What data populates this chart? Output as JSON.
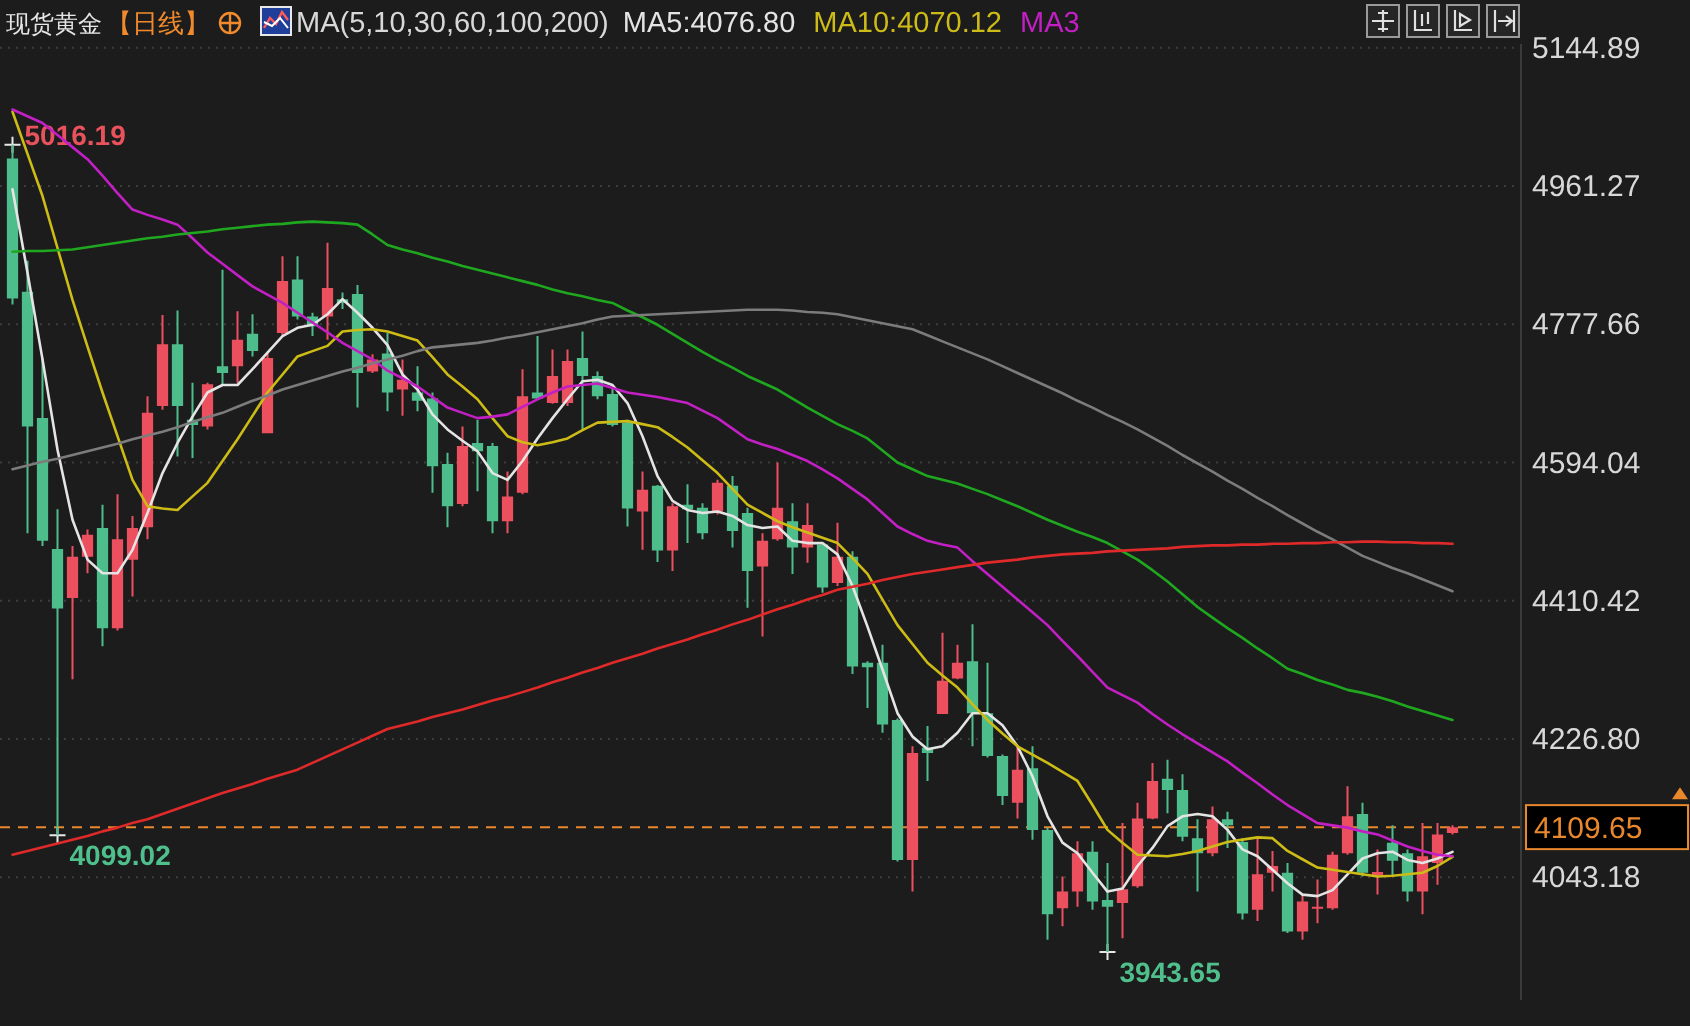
{
  "chart_data": {
    "type": "candlestick",
    "title": "现货黄金",
    "subtitle": "【日线】",
    "legend_title": "MA(5,10,30,60,100,200)",
    "legend": "top",
    "categories": [
      null,
      null,
      null,
      null,
      null,
      null,
      null,
      null,
      null,
      null,
      null,
      null,
      null,
      null,
      null,
      null,
      null,
      null,
      null,
      null,
      null,
      null,
      null,
      null,
      null,
      null,
      null,
      null,
      null,
      null,
      null,
      null,
      null,
      null,
      null,
      null,
      null,
      null,
      null,
      null,
      null,
      null,
      null,
      null,
      null,
      null,
      null,
      null,
      null,
      null,
      null,
      null,
      null,
      null,
      null,
      null,
      null,
      null,
      null,
      null,
      null,
      null,
      null,
      null,
      null,
      null,
      null,
      null,
      null,
      null,
      null,
      null,
      null,
      null,
      null,
      null,
      null,
      null,
      null,
      null,
      null,
      null,
      null,
      null,
      null,
      null,
      null,
      null,
      null,
      null,
      null,
      null,
      null,
      null,
      null,
      null,
      null
    ],
    "ohlc": [
      [
        4998,
        5016.19,
        4804,
        4812
      ],
      [
        4821,
        4862,
        4500,
        4642
      ],
      [
        4653,
        4733,
        4483,
        4490
      ],
      [
        4479,
        4532,
        4099.02,
        4400
      ],
      [
        4414,
        4483,
        4306,
        4469
      ],
      [
        4469,
        4505,
        4447,
        4498
      ],
      [
        4507,
        4538,
        4350,
        4374
      ],
      [
        4374,
        4552,
        4371,
        4492
      ],
      [
        4465,
        4523,
        4416,
        4507
      ],
      [
        4508,
        4682,
        4492,
        4660
      ],
      [
        4669,
        4790,
        4664,
        4751
      ],
      [
        4751,
        4796,
        4602,
        4669
      ],
      [
        4651,
        4700,
        4600,
        4644
      ],
      [
        4642,
        4700,
        4638,
        4698
      ],
      [
        4722,
        4850,
        4697,
        4713
      ],
      [
        4722,
        4795,
        4700,
        4757
      ],
      [
        4765,
        4791,
        4735,
        4742
      ],
      [
        4633,
        4740,
        4633,
        4733
      ],
      [
        4766,
        4868,
        4762,
        4835
      ],
      [
        4837,
        4868,
        4784,
        4788
      ],
      [
        4788,
        4793,
        4762,
        4775
      ],
      [
        4788,
        4886,
        4757,
        4826
      ],
      [
        4811,
        4820,
        4798,
        4806
      ],
      [
        4818,
        4830,
        4667,
        4713
      ],
      [
        4715,
        4738,
        4713,
        4731
      ],
      [
        4739,
        4766,
        4662,
        4687
      ],
      [
        4691,
        4731,
        4656,
        4704
      ],
      [
        4687,
        4722,
        4662,
        4676
      ],
      [
        4679,
        4687,
        4554,
        4589
      ],
      [
        4592,
        4607,
        4508,
        4536
      ],
      [
        4539,
        4642,
        4536,
        4616
      ],
      [
        4620,
        4651,
        4556,
        4609
      ],
      [
        4616,
        4620,
        4500,
        4516
      ],
      [
        4516,
        4582,
        4500,
        4549
      ],
      [
        4554,
        4718,
        4552,
        4682
      ],
      [
        4687,
        4762,
        4678,
        4679
      ],
      [
        4673,
        4744,
        4672,
        4709
      ],
      [
        4673,
        4744,
        4669,
        4729
      ],
      [
        4733,
        4768,
        4638,
        4709
      ],
      [
        4709,
        4715,
        4678,
        4682
      ],
      [
        4685,
        4697,
        4642,
        4644
      ],
      [
        4647,
        4651,
        4509,
        4533
      ],
      [
        4529,
        4582,
        4478,
        4558
      ],
      [
        4563,
        4564,
        4462,
        4477
      ],
      [
        4477,
        4540,
        4450,
        4536
      ],
      [
        4538,
        4565,
        4487,
        4532
      ],
      [
        4534,
        4540,
        4492,
        4500
      ],
      [
        4529,
        4571,
        4525,
        4567
      ],
      [
        4563,
        4576,
        4481,
        4503
      ],
      [
        4527,
        4534,
        4401,
        4450
      ],
      [
        4456,
        4500,
        4363,
        4490
      ],
      [
        4492,
        4594,
        4490,
        4534
      ],
      [
        4516,
        4540,
        4446,
        4481
      ],
      [
        4481,
        4540,
        4461,
        4511
      ],
      [
        4485,
        4487,
        4421,
        4428
      ],
      [
        4434,
        4514,
        4430,
        4469
      ],
      [
        4469,
        4476,
        4313,
        4323
      ],
      [
        4328,
        4330,
        4268,
        4322
      ],
      [
        4328,
        4352,
        4235,
        4246
      ],
      [
        4252,
        4254,
        4064,
        4066
      ],
      [
        4066,
        4217,
        4024,
        4208
      ],
      [
        4215,
        4244,
        4171,
        4208
      ],
      [
        4260,
        4368,
        4260,
        4304
      ],
      [
        4307,
        4352,
        4306,
        4328
      ],
      [
        4330,
        4379,
        4217,
        4261
      ],
      [
        4261,
        4328,
        4202,
        4204
      ],
      [
        4204,
        4206,
        4139,
        4151
      ],
      [
        4142,
        4219,
        4121,
        4186
      ],
      [
        4188,
        4217,
        4093,
        4106
      ],
      [
        4106,
        4109,
        3960,
        3994
      ],
      [
        4002,
        4044,
        3978,
        4024
      ],
      [
        4024,
        4091,
        4004,
        4075
      ],
      [
        4077,
        4091,
        4000,
        4011
      ],
      [
        4013,
        4062,
        3943.65,
        4004
      ],
      [
        4009,
        4115,
        3962,
        4027
      ],
      [
        4031,
        4142,
        4029,
        4121
      ],
      [
        4121,
        4195,
        4120,
        4171
      ],
      [
        4174,
        4199,
        4128,
        4159
      ],
      [
        4159,
        4180,
        4091,
        4097
      ],
      [
        4095,
        4120,
        4024,
        4075
      ],
      [
        4075,
        4137,
        4071,
        4120
      ],
      [
        4120,
        4130,
        4082,
        4112
      ],
      [
        4090,
        4095,
        3987,
        3995
      ],
      [
        4000,
        4097,
        3985,
        4047
      ],
      [
        4049,
        4078,
        4024,
        4058
      ],
      [
        4049,
        4062,
        3969,
        3971
      ],
      [
        3971,
        4020,
        3960,
        4011
      ],
      [
        4002,
        4040,
        3982,
        4004
      ],
      [
        4002,
        4077,
        4000,
        4073
      ],
      [
        4075,
        4164,
        4073,
        4124
      ],
      [
        4127,
        4142,
        4044,
        4049
      ],
      [
        4046,
        4080,
        4020,
        4050
      ],
      [
        4089,
        4112,
        4044,
        4065
      ],
      [
        4075,
        4080,
        4011,
        4024
      ],
      [
        4024,
        4115,
        3994,
        4071
      ],
      [
        4062,
        4115,
        4033,
        4100
      ],
      [
        4102,
        4112,
        4100,
        4109.65
      ]
    ],
    "colors": [
      "#4dbd8b",
      "#4dbd8b",
      "#4dbd8b",
      "#4dbd8b",
      "#ec4f5e",
      "#ec4f5e",
      "#4dbd8b",
      "#ec4f5e",
      "#ec4f5e",
      "#ec4f5e",
      "#ec4f5e",
      "#4dbd8b",
      "#4dbd8b",
      "#ec4f5e",
      "#4dbd8b",
      "#ec4f5e",
      "#4dbd8b",
      "#ec4f5e",
      "#ec4f5e",
      "#4dbd8b",
      "#4dbd8b",
      "#ec4f5e",
      "#4dbd8b",
      "#4dbd8b",
      "#ec4f5e",
      "#4dbd8b",
      "#ec4f5e",
      "#4dbd8b",
      "#4dbd8b",
      "#4dbd8b",
      "#ec4f5e",
      "#4dbd8b",
      "#4dbd8b",
      "#ec4f5e",
      "#ec4f5e",
      "#4dbd8b",
      "#ec4f5e",
      "#ec4f5e",
      "#4dbd8b",
      "#4dbd8b",
      "#4dbd8b",
      "#4dbd8b",
      "#ec4f5e",
      "#4dbd8b",
      "#ec4f5e",
      "#4dbd8b",
      "#4dbd8b",
      "#ec4f5e",
      "#4dbd8b",
      "#4dbd8b",
      "#ec4f5e",
      "#ec4f5e",
      "#4dbd8b",
      "#ec4f5e",
      "#4dbd8b",
      "#ec4f5e",
      "#4dbd8b",
      "#4dbd8b",
      "#4dbd8b",
      "#4dbd8b",
      "#ec4f5e",
      "#4dbd8b",
      "#ec4f5e",
      "#ec4f5e",
      "#4dbd8b",
      "#4dbd8b",
      "#4dbd8b",
      "#ec4f5e",
      "#4dbd8b",
      "#4dbd8b",
      "#ec4f5e",
      "#ec4f5e",
      "#4dbd8b",
      "#4dbd8b",
      "#ec4f5e",
      "#ec4f5e",
      "#ec4f5e",
      "#4dbd8b",
      "#4dbd8b",
      "#4dbd8b",
      "#ec4f5e",
      "#4dbd8b",
      "#4dbd8b",
      "#ec4f5e",
      "#ec4f5e",
      "#4dbd8b",
      "#ec4f5e",
      "#ec4f5e",
      "#ec4f5e",
      "#ec4f5e",
      "#4dbd8b",
      "#ec4f5e",
      "#4dbd8b",
      "#4dbd8b",
      "#ec4f5e",
      "#ec4f5e",
      "#ec4f5e"
    ],
    "series": [
      {
        "name": "MA5:4076.80",
        "type": "line",
        "color": "#e4e4e4",
        "values": [
          4957,
          4846,
          4731,
          4611,
          4518,
          4465,
          4447,
          4447,
          4478,
          4527,
          4580,
          4620,
          4655,
          4687,
          4697,
          4697,
          4718,
          4740,
          4762,
          4773,
          4777,
          4791,
          4811,
          4793,
          4773,
          4750,
          4711,
          4691,
          4658,
          4638,
          4623,
          4609,
          4580,
          4571,
          4596,
          4626,
          4653,
          4678,
          4702,
          4704,
          4697,
          4673,
          4629,
          4576,
          4543,
          4531,
          4527,
          4529,
          4523,
          4511,
          4507,
          4509,
          4490,
          4487,
          4487,
          4472,
          4430,
          4376,
          4319,
          4261,
          4230,
          4213,
          4217,
          4235,
          4261,
          4261,
          4245,
          4217,
          4177,
          4124,
          4089,
          4075,
          4049,
          4024,
          4028,
          4058,
          4082,
          4111,
          4124,
          4127,
          4124,
          4106,
          4080,
          4071,
          4053,
          4035,
          4020,
          4018,
          4026,
          4047,
          4068,
          4075,
          4077,
          4066,
          4062,
          4068,
          4076.8
        ]
      },
      {
        "name": "MA10:4070.12",
        "type": "line",
        "color": "#cdbb16",
        "values": [
          5060,
          5004,
          4948,
          4879,
          4810,
          4748,
          4687,
          4629,
          4571,
          4536,
          4533,
          4531,
          4549,
          4567,
          4596,
          4625,
          4656,
          4687,
          4711,
          4735,
          4742,
          4749,
          4768,
          4770,
          4771,
          4768,
          4762,
          4756,
          4734,
          4711,
          4695,
          4678,
          4653,
          4629,
          4621,
          4617,
          4621,
          4626,
          4637,
          4647,
          4648,
          4649,
          4645,
          4641,
          4628,
          4614,
          4597,
          4580,
          4559,
          4538,
          4527,
          4516,
          4508,
          4501,
          4494,
          4487,
          4467,
          4446,
          4412,
          4378,
          4353,
          4328,
          4311,
          4295,
          4273,
          4252,
          4234,
          4217,
          4206,
          4195,
          4183,
          4171,
          4139,
          4106,
          4089,
          4073,
          4072,
          4071,
          4074,
          4078,
          4084,
          4090,
          4093,
          4096,
          4095,
          4078,
          4067,
          4056,
          4053,
          4050,
          4047,
          4044,
          4045,
          4047,
          4049,
          4058,
          4070.12
        ]
      },
      {
        "name": "MA3",
        "type": "line",
        "color": "#c21fc4",
        "values": [
          5063,
          5054,
          5045,
          5029,
          5013,
          4997,
          4975,
          4952,
          4930,
          4923,
          4917,
          4910,
          4892,
          4873,
          4858,
          4843,
          4828,
          4817,
          4806,
          4793,
          4780,
          4767,
          4753,
          4742,
          4731,
          4716,
          4706,
          4695,
          4681,
          4667,
          4660,
          4653,
          4655,
          4658,
          4668,
          4678,
          4687,
          4695,
          4697,
          4699,
          4693,
          4687,
          4684,
          4681,
          4677,
          4673,
          4663,
          4653,
          4639,
          4625,
          4618,
          4612,
          4604,
          4596,
          4585,
          4573,
          4559,
          4545,
          4527,
          4509,
          4499,
          4490,
          4485,
          4481,
          4463,
          4446,
          4429,
          4412,
          4395,
          4378,
          4357,
          4337,
          4316,
          4295,
          4285,
          4275,
          4260,
          4246,
          4233,
          4221,
          4209,
          4197,
          4182,
          4168,
          4153,
          4139,
          4127,
          4115,
          4112,
          4109,
          4104,
          4100,
          4092,
          4084,
          4078,
          4073,
          4071
        ]
      },
      {
        "type": "line",
        "color": "#1fa81f",
        "values": [
          4874,
          4875,
          4875,
          4876,
          4877,
          4880,
          4883,
          4886,
          4889,
          4892,
          4894,
          4897,
          4899,
          4901,
          4904,
          4906,
          4908,
          4910,
          4911,
          4913,
          4914,
          4913,
          4912,
          4910,
          4897,
          4883,
          4877,
          4872,
          4866,
          4861,
          4855,
          4850,
          4845,
          4840,
          4835,
          4830,
          4824,
          4819,
          4815,
          4810,
          4806,
          4796,
          4787,
          4777,
          4765,
          4753,
          4741,
          4730,
          4720,
          4709,
          4700,
          4691,
          4679,
          4667,
          4656,
          4645,
          4636,
          4626,
          4610,
          4594,
          4585,
          4576,
          4571,
          4566,
          4559,
          4552,
          4544,
          4536,
          4527,
          4518,
          4510,
          4502,
          4495,
          4487,
          4476,
          4465,
          4451,
          4436,
          4419,
          4402,
          4388,
          4374,
          4361,
          4347,
          4334,
          4320,
          4313,
          4305,
          4299,
          4292,
          4288,
          4283,
          4277,
          4270,
          4264,
          4258,
          4252
        ]
      },
      {
        "type": "line",
        "color": "#7c7c7c",
        "values": [
          4585,
          4590,
          4595,
          4599,
          4604,
          4609,
          4614,
          4619,
          4625,
          4630,
          4635,
          4641,
          4648,
          4654,
          4660,
          4668,
          4676,
          4683,
          4691,
          4697,
          4703,
          4709,
          4715,
          4720,
          4726,
          4731,
          4736,
          4742,
          4747,
          4749,
          4751,
          4753,
          4756,
          4760,
          4763,
          4767,
          4771,
          4775,
          4779,
          4784,
          4788,
          4789,
          4790,
          4791,
          4792,
          4793,
          4794,
          4795,
          4796,
          4797,
          4797,
          4797,
          4796,
          4794,
          4793,
          4791,
          4787,
          4783,
          4779,
          4775,
          4771,
          4763,
          4755,
          4747,
          4739,
          4731,
          4722,
          4713,
          4704,
          4695,
          4686,
          4676,
          4667,
          4657,
          4648,
          4638,
          4627,
          4616,
          4604,
          4593,
          4582,
          4570,
          4559,
          4547,
          4536,
          4524,
          4513,
          4502,
          4492,
          4481,
          4470,
          4462,
          4454,
          4447,
          4439,
          4431,
          4423
        ]
      },
      {
        "type": "line",
        "color": "#e02a2a",
        "values": [
          4073,
          4078,
          4083,
          4088,
          4093,
          4098,
          4104,
          4109,
          4115,
          4120,
          4127,
          4134,
          4141,
          4148,
          4155,
          4161,
          4167,
          4174,
          4180,
          4186,
          4195,
          4204,
          4213,
          4222,
          4231,
          4240,
          4245,
          4250,
          4256,
          4261,
          4266,
          4272,
          4278,
          4283,
          4289,
          4295,
          4302,
          4308,
          4315,
          4321,
          4328,
          4334,
          4340,
          4347,
          4353,
          4359,
          4366,
          4372,
          4379,
          4385,
          4392,
          4399,
          4405,
          4412,
          4418,
          4425,
          4429,
          4433,
          4438,
          4442,
          4446,
          4449,
          4452,
          4455,
          4458,
          4461,
          4463,
          4465,
          4468,
          4470,
          4472,
          4473,
          4474,
          4476,
          4477,
          4478,
          4479,
          4480,
          4482,
          4483,
          4484,
          4484,
          4485,
          4485,
          4486,
          4486,
          4487,
          4487,
          4488,
          4488,
          4489,
          4489,
          4488,
          4488,
          4487,
          4487,
          4486
        ]
      }
    ],
    "ylim": [
      3880,
      5150
    ],
    "yticks": [
      5144.89,
      4961.27,
      4777.66,
      4594.04,
      4410.42,
      {
        "value": 4226.8,
        "label": "4226.80"
      },
      4043.18
    ],
    "grid": "y",
    "tick_labels": "y",
    "ref_lines": [
      {
        "axis": "y",
        "value": 4109.65,
        "label": "4109.65",
        "color": "#e8872c",
        "line_style": "dashed"
      }
    ],
    "annotations": [
      {
        "text": "5016.19",
        "y": 5016.19
      },
      {
        "text": "4099.02",
        "y": 4099.02
      },
      "3943.65"
    ]
  }
}
